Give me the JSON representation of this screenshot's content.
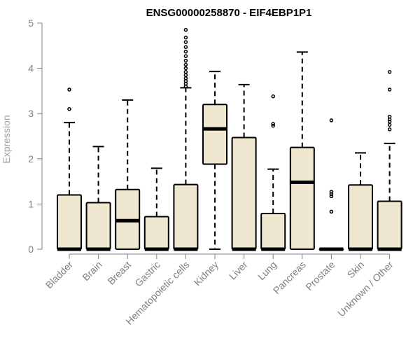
{
  "chart_data": {
    "type": "box",
    "title": "ENSG00000258870 - EIF4EBP1P1",
    "ylabel": "Expression",
    "xlabel": "",
    "ylim": [
      0,
      5
    ],
    "yticks": [
      0,
      1,
      2,
      3,
      4,
      5
    ],
    "grid": false,
    "box_fill": "#efe7cf",
    "box_stroke": "#000000",
    "categories": [
      "Bladder",
      "Brain",
      "Breast",
      "Gastric",
      "Hematopoietic cells",
      "Kidney",
      "Liver",
      "Lung",
      "Pancreas",
      "Prostate",
      "Skin",
      "Unknown / Other"
    ],
    "boxes": [
      {
        "min": 0,
        "q1": 0,
        "median": 0,
        "q3": 1.2,
        "max": 2.8,
        "outliers": [
          3.1,
          3.53
        ]
      },
      {
        "min": 0,
        "q1": 0,
        "median": 0,
        "q3": 1.03,
        "max": 2.27,
        "outliers": []
      },
      {
        "min": 0,
        "q1": 0,
        "median": 0.63,
        "q3": 1.32,
        "max": 3.3,
        "outliers": []
      },
      {
        "min": 0,
        "q1": 0,
        "median": 0,
        "q3": 0.72,
        "max": 1.79,
        "outliers": []
      },
      {
        "min": 0,
        "q1": 0,
        "median": 0,
        "q3": 1.43,
        "max": 3.57,
        "outliers": [
          3.6,
          3.66,
          3.72,
          3.78,
          3.85,
          3.92,
          4.0,
          4.08,
          4.17,
          4.27,
          4.37,
          4.47,
          4.58,
          4.68,
          4.85
        ]
      },
      {
        "min": 0,
        "q1": 1.88,
        "median": 2.66,
        "q3": 3.2,
        "max": 3.93,
        "outliers": []
      },
      {
        "min": 0,
        "q1": 0,
        "median": 0,
        "q3": 2.47,
        "max": 3.64,
        "outliers": []
      },
      {
        "min": 0,
        "q1": 0,
        "median": 0,
        "q3": 0.79,
        "max": 1.77,
        "outliers": [
          2.73,
          2.77,
          3.38
        ]
      },
      {
        "min": 0,
        "q1": 0,
        "median": 1.48,
        "q3": 2.25,
        "max": 4.36,
        "outliers": []
      },
      {
        "min": 0,
        "q1": 0,
        "median": 0,
        "q3": 0,
        "max": 0,
        "outliers": [
          0.83,
          1.17,
          1.22,
          1.27,
          2.85
        ]
      },
      {
        "min": 0,
        "q1": 0,
        "median": 0,
        "q3": 1.42,
        "max": 2.13,
        "outliers": []
      },
      {
        "min": 0,
        "q1": 0,
        "median": 0,
        "q3": 1.06,
        "max": 2.34,
        "outliers": [
          2.65,
          2.75,
          2.82,
          2.87,
          2.93,
          3.53,
          3.92
        ]
      }
    ]
  }
}
